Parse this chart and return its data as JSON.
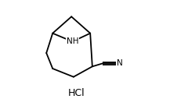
{
  "background_color": "#ffffff",
  "line_color": "#000000",
  "line_width": 1.3,
  "nh_label": "NH",
  "nh_fontsize": 7.5,
  "hcl_label": "HCl",
  "hcl_fontsize": 9,
  "n_label": "N",
  "n_fontsize": 7.5,
  "figsize": [
    2.17,
    1.36
  ],
  "dpi": 100,
  "xlim": [
    0.0,
    1.0
  ],
  "ylim": [
    0.0,
    1.0
  ]
}
